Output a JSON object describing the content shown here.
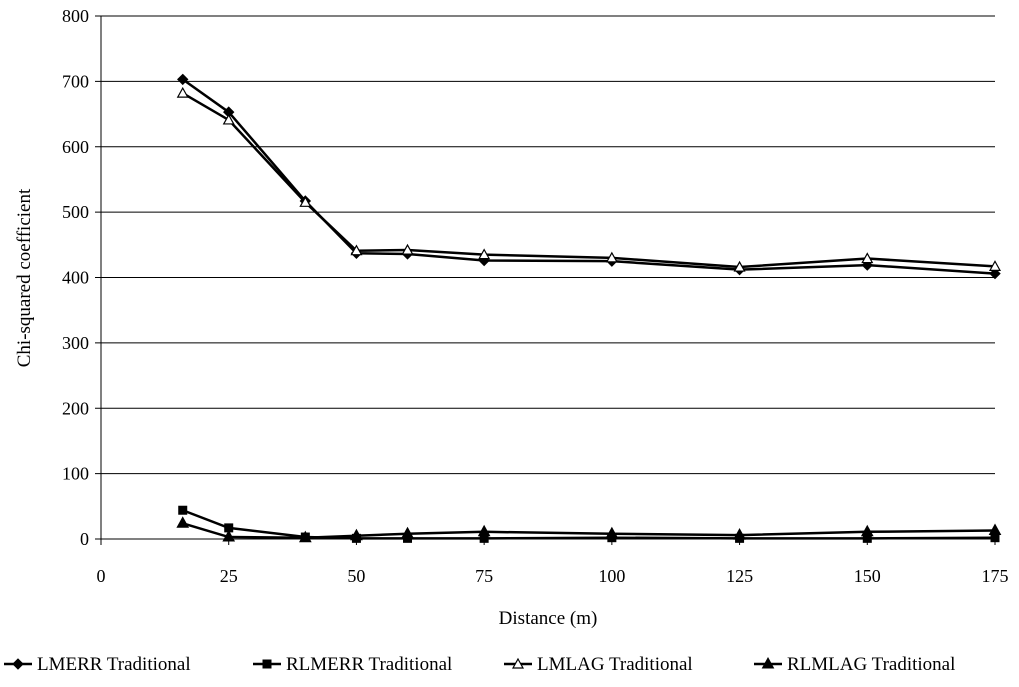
{
  "chart_data": {
    "type": "line",
    "title": "",
    "xlabel": "Distance (m)",
    "ylabel": "Chi-squared coefficient",
    "xlim": [
      0,
      175
    ],
    "ylim": [
      0,
      800
    ],
    "xticks": [
      0,
      25,
      50,
      75,
      100,
      125,
      150,
      175
    ],
    "yticks": [
      0,
      100,
      200,
      300,
      400,
      500,
      600,
      700,
      800
    ],
    "x": [
      16,
      25,
      40,
      50,
      60,
      75,
      100,
      125,
      150,
      175
    ],
    "grid": "horizontal",
    "legend_position": "bottom",
    "series": [
      {
        "name": "LMERR Traditional",
        "marker": "diamond-filled",
        "values": [
          703,
          653,
          517,
          437,
          436,
          426,
          425,
          412,
          419,
          406
        ]
      },
      {
        "name": "RLMERR Traditional",
        "marker": "square-filled",
        "values": [
          44,
          17,
          3,
          1,
          1,
          1,
          2,
          1,
          1,
          2
        ]
      },
      {
        "name": "LMLAG Traditional",
        "marker": "triangle-open",
        "values": [
          682,
          641,
          515,
          441,
          442,
          435,
          430,
          416,
          429,
          417
        ]
      },
      {
        "name": "RLMLAG Traditional",
        "marker": "triangle-filled",
        "values": [
          24,
          3,
          2,
          5,
          8,
          11,
          8,
          6,
          11,
          13
        ]
      }
    ]
  }
}
